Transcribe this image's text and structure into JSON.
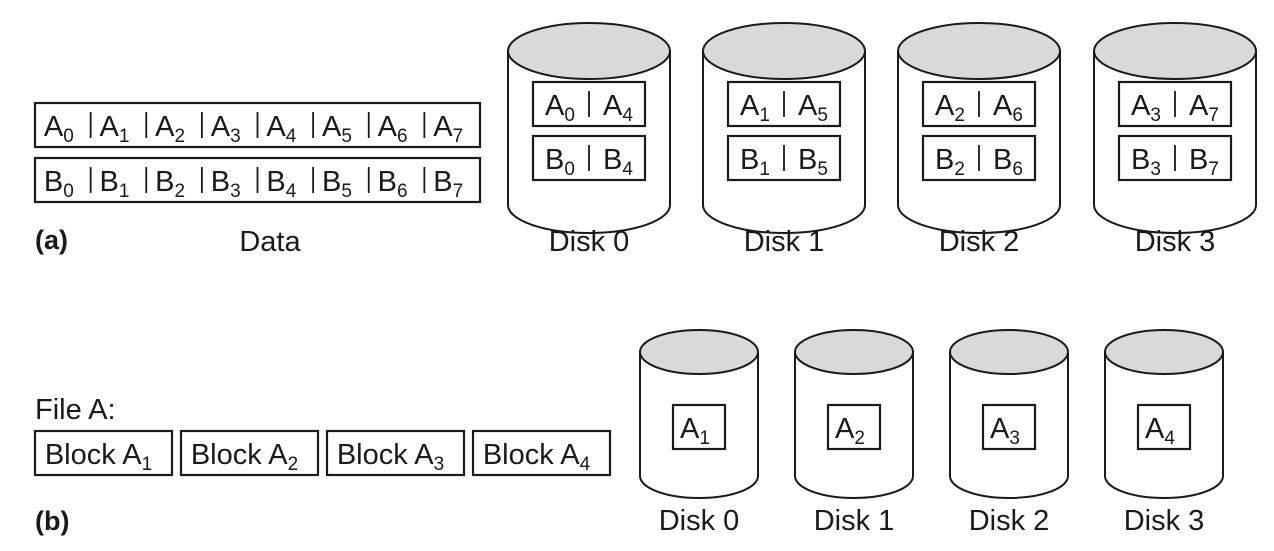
{
  "part_a": {
    "label": "(a)",
    "data_caption": "Data",
    "rows": [
      {
        "letter": "A",
        "subs": [
          "0",
          "1",
          "2",
          "3",
          "4",
          "5",
          "6",
          "7"
        ]
      },
      {
        "letter": "B",
        "subs": [
          "0",
          "1",
          "2",
          "3",
          "4",
          "5",
          "6",
          "7"
        ]
      }
    ],
    "disks": [
      {
        "caption": "Disk 0",
        "rows": [
          {
            "cells": [
              [
                "A",
                "0"
              ],
              [
                "A",
                "4"
              ]
            ]
          },
          {
            "cells": [
              [
                "B",
                "0"
              ],
              [
                "B",
                "4"
              ]
            ]
          }
        ]
      },
      {
        "caption": "Disk 1",
        "rows": [
          {
            "cells": [
              [
                "A",
                "1"
              ],
              [
                "A",
                "5"
              ]
            ]
          },
          {
            "cells": [
              [
                "B",
                "1"
              ],
              [
                "B",
                "5"
              ]
            ]
          }
        ]
      },
      {
        "caption": "Disk 2",
        "rows": [
          {
            "cells": [
              [
                "A",
                "2"
              ],
              [
                "A",
                "6"
              ]
            ]
          },
          {
            "cells": [
              [
                "B",
                "2"
              ],
              [
                "B",
                "6"
              ]
            ]
          }
        ]
      },
      {
        "caption": "Disk 3",
        "rows": [
          {
            "cells": [
              [
                "A",
                "3"
              ],
              [
                "A",
                "7"
              ]
            ]
          },
          {
            "cells": [
              [
                "B",
                "3"
              ],
              [
                "B",
                "7"
              ]
            ]
          }
        ]
      }
    ]
  },
  "part_b": {
    "label": "(b)",
    "file_label": "File A:",
    "blocks": [
      {
        "prefix": "Block A",
        "sub": "1"
      },
      {
        "prefix": "Block A",
        "sub": "2"
      },
      {
        "prefix": "Block A",
        "sub": "3"
      },
      {
        "prefix": "Block A",
        "sub": "4"
      }
    ],
    "disks": [
      {
        "caption": "Disk 0",
        "cell": [
          "A",
          "1"
        ]
      },
      {
        "caption": "Disk 1",
        "cell": [
          "A",
          "2"
        ]
      },
      {
        "caption": "Disk 2",
        "cell": [
          "A",
          "3"
        ]
      },
      {
        "caption": "Disk 3",
        "cell": [
          "A",
          "4"
        ]
      }
    ]
  },
  "colors": {
    "ink": "#1a1a1a",
    "disk_top": "#d9d9d9",
    "background": "#ffffff"
  }
}
